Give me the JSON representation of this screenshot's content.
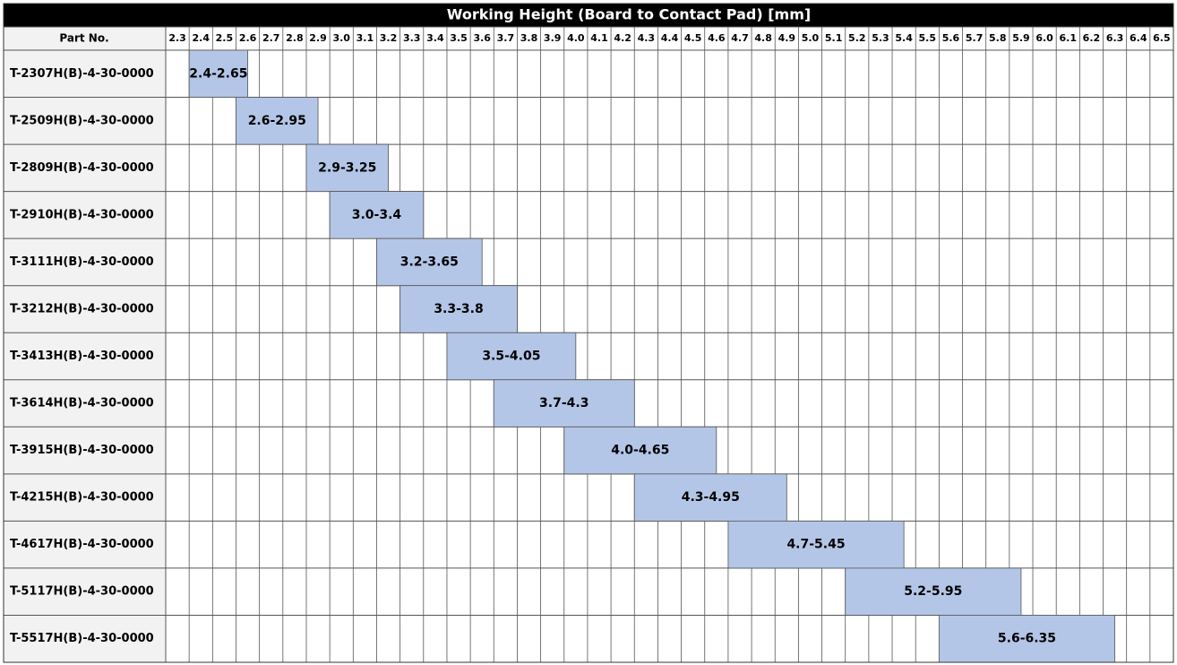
{
  "chart_data": {
    "type": "range-bar",
    "title": "Working Height (Board to Contact Pad) [mm]",
    "category_header": "Part No.",
    "categories": [
      "T-2307H(B)-4-30-0000",
      "T-2509H(B)-4-30-0000",
      "T-2809H(B)-4-30-0000",
      "T-2910H(B)-4-30-0000",
      "T-3111H(B)-4-30-0000",
      "T-3212H(B)-4-30-0000",
      "T-3413H(B)-4-30-0000",
      "T-3614H(B)-4-30-0000",
      "T-3915H(B)-4-30-0000",
      "T-4215H(B)-4-30-0000",
      "T-4617H(B)-4-30-0000",
      "T-5117H(B)-4-30-0000",
      "T-5517H(B)-4-30-0000"
    ],
    "starts": [
      2.4,
      2.6,
      2.9,
      3.0,
      3.2,
      3.3,
      3.5,
      3.7,
      4.0,
      4.3,
      4.7,
      5.2,
      5.6
    ],
    "ends": [
      2.65,
      2.95,
      3.25,
      3.4,
      3.65,
      3.8,
      4.05,
      4.3,
      4.65,
      4.95,
      5.45,
      5.95,
      6.35
    ],
    "value_labels": [
      "2.4-2.65",
      "2.6-2.95",
      "2.9-3.25",
      "3.0-3.4",
      "3.2-3.65",
      "3.3-3.8",
      "3.5-4.05",
      "3.7-4.3",
      "4.0-4.65",
      "4.3-4.95",
      "4.7-5.45",
      "5.2-5.95",
      "5.6-6.35"
    ],
    "color": "#b4c6e7",
    "xlim": [
      2.3,
      6.6
    ],
    "xticks": [
      2.3,
      2.4,
      2.5,
      2.6,
      2.7,
      2.8,
      2.9,
      {
        "value": 3,
        "label": "3.0"
      },
      3.1,
      3.2,
      3.3,
      3.4,
      3.5,
      3.6,
      3.7,
      3.8,
      3.9,
      {
        "value": 4,
        "label": "4.0"
      },
      4.1,
      4.2,
      4.3,
      4.4,
      4.5,
      4.6,
      4.7,
      4.8,
      4.9,
      {
        "value": 5,
        "label": "5.0"
      },
      5.1,
      5.2,
      5.3,
      5.4,
      5.5,
      5.6,
      5.7,
      5.8,
      5.9,
      {
        "value": 6,
        "label": "6.0"
      },
      6.1,
      6.2,
      6.3,
      6.4,
      6.5
    ],
    "grid": true
  }
}
